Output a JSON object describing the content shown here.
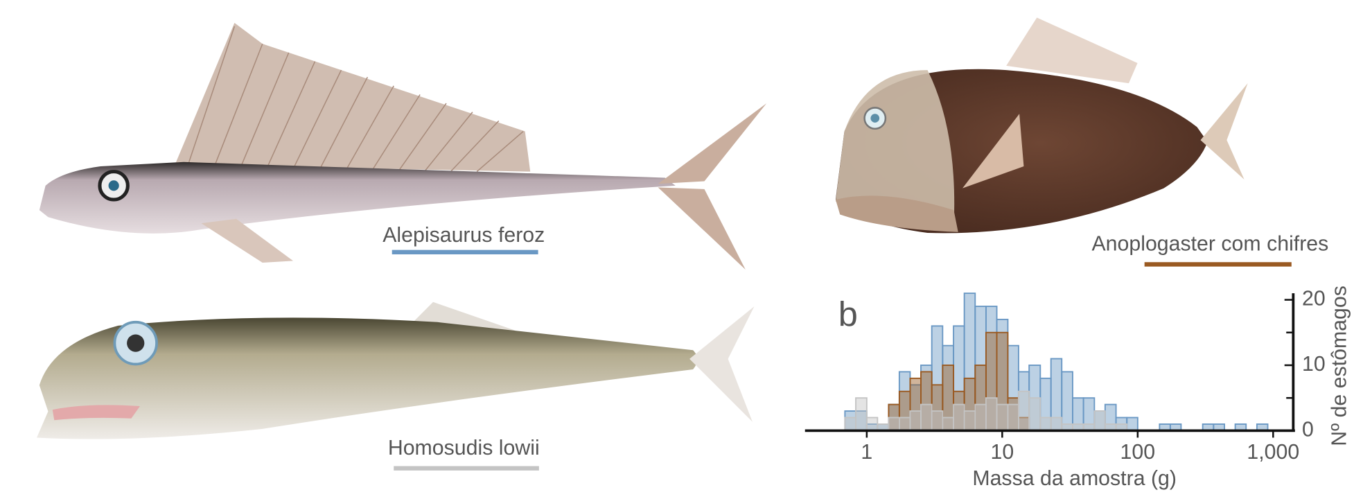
{
  "chart_data": {
    "type": "histogram",
    "panel_label": "b",
    "x_label": "Massa da amostra (g)",
    "y_label": "Nº de estômagos",
    "x_log": true,
    "xlim": [
      0.35,
      1450
    ],
    "xticks": [
      1,
      10,
      100,
      {
        "value": 1000,
        "label": "1,000"
      }
    ],
    "ylim": [
      0,
      21
    ],
    "yticks": [
      0,
      10,
      20
    ],
    "y_minor_ticks": [
      5,
      15
    ],
    "bins": [
      0.69,
      0.83,
      1,
      1.2,
      1.45,
      1.74,
      2.09,
      2.51,
      3.02,
      3.63,
      4.37,
      5.25,
      6.31,
      7.59,
      9.12,
      11.0,
      13.2,
      15.8,
      19.1,
      22.9,
      27.5,
      33.1,
      39.8,
      47.9,
      57.5,
      69.2,
      83.2,
      100,
      120,
      145,
      174,
      209,
      251,
      302,
      363,
      437,
      525,
      631,
      759,
      912
    ],
    "series": [
      {
        "name": "Alepisaurus feroz",
        "color": "#6a98c4",
        "values": [
          3,
          3,
          1,
          1,
          4,
          9,
          7,
          10,
          16,
          13,
          16,
          21,
          19,
          19,
          17,
          13,
          9,
          10,
          8,
          11,
          9,
          5,
          5,
          3,
          4,
          2,
          2,
          0,
          0,
          1,
          1,
          0,
          0,
          1,
          1,
          0,
          1,
          0,
          1
        ]
      },
      {
        "name": "Anoplogaster com chifres",
        "color": "#9a5a22",
        "values": [
          0,
          0,
          0,
          0,
          4,
          6,
          8,
          9,
          7,
          10,
          6,
          8,
          10,
          15,
          15,
          5,
          2,
          0,
          0,
          0,
          0,
          0,
          0,
          0,
          0,
          0,
          0,
          0,
          0,
          0,
          0,
          0,
          0,
          0,
          0,
          0,
          0,
          0,
          0
        ]
      },
      {
        "name": "Homosudis lowii",
        "color": "#c4c4c4",
        "values": [
          2,
          5,
          2,
          1,
          2,
          2,
          3,
          4,
          3,
          2,
          4,
          3,
          4,
          5,
          4,
          4,
          6,
          5,
          2,
          2,
          1,
          1,
          1,
          3,
          1,
          1,
          0,
          0,
          0,
          0,
          0,
          0,
          0,
          0,
          0,
          0,
          0,
          0,
          0
        ]
      }
    ]
  }
}
